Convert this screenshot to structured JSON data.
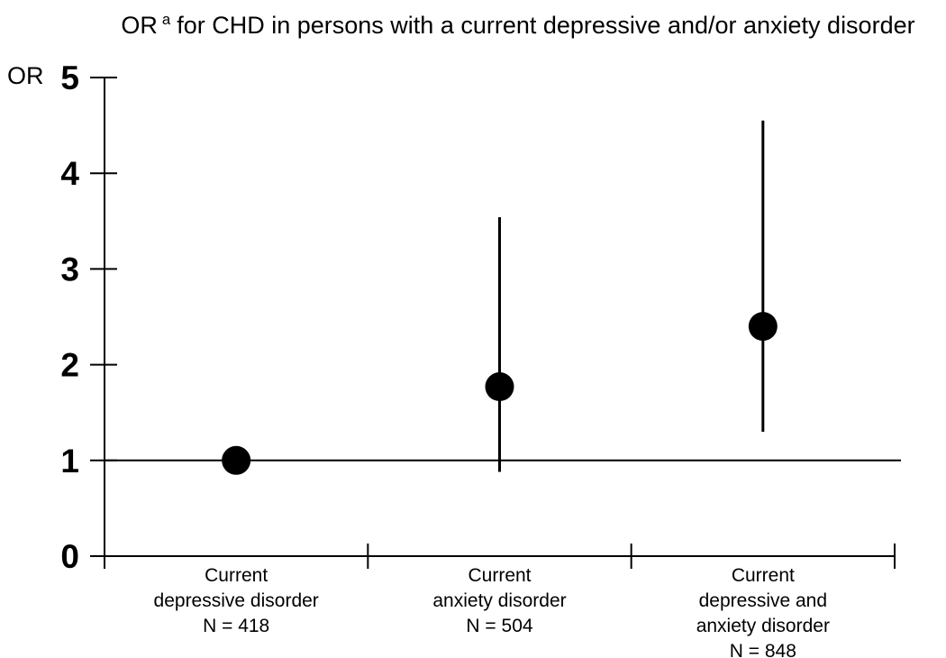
{
  "title": {
    "prefix": "OR",
    "superscript": "a",
    "rest": "for CHD in persons with a current depressive and/or anxiety disorder"
  },
  "chart_data": {
    "type": "scatter",
    "title": "OR a for CHD in persons with a current depressive and/or anxiety disorder",
    "ylabel": "OR",
    "xlabel": "",
    "ylim": [
      0,
      5
    ],
    "yticks": [
      0,
      1,
      2,
      3,
      4,
      5
    ],
    "reference_line_y": 1.0,
    "grid": false,
    "legend": false,
    "categories": [
      "Current depressive disorder",
      "Current anxiety disorder",
      "Current depressive and anxiety disorder"
    ],
    "points": [
      {
        "category_lines": [
          "Current",
          "depressive disorder"
        ],
        "n_label": "N = 418",
        "or": 1.0,
        "ci_low": null,
        "ci_high": null
      },
      {
        "category_lines": [
          "Current",
          "anxiety disorder"
        ],
        "n_label": "N = 504",
        "or": 1.77,
        "ci_low": 0.88,
        "ci_high": 3.54
      },
      {
        "category_lines": [
          "Current",
          "depressive and",
          "anxiety disorder"
        ],
        "n_label": "N = 848",
        "or": 2.4,
        "ci_low": 1.3,
        "ci_high": 4.55
      }
    ],
    "colors": {
      "foreground": "#000000",
      "background": "#ffffff"
    }
  }
}
